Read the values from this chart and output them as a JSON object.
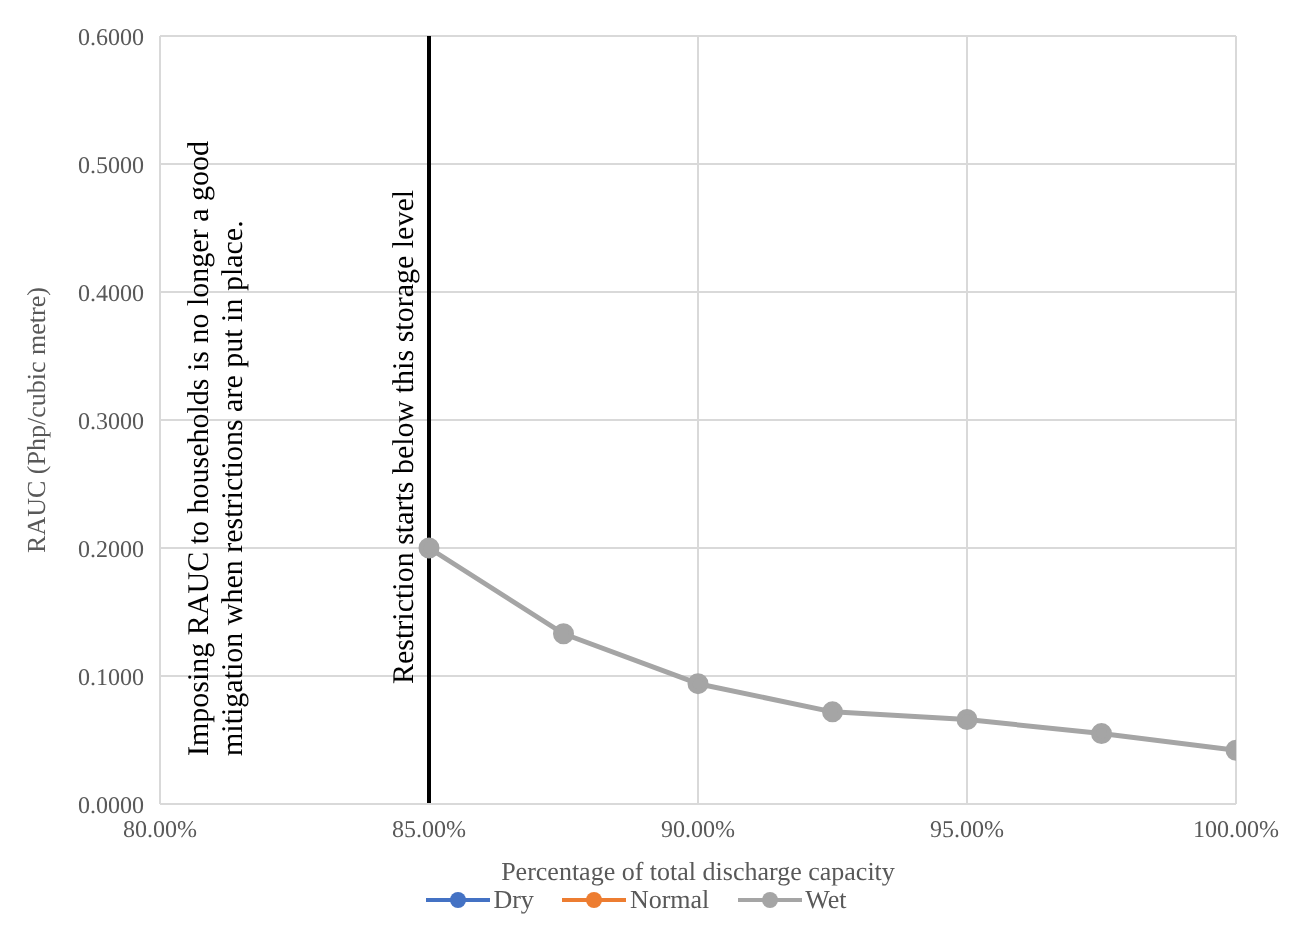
{
  "chart_data": {
    "type": "line",
    "xlabel": "Percentage of total discharge capacity",
    "ylabel": "RAUC (Php/cubic metre)",
    "x": [
      85,
      87.5,
      90,
      92.5,
      95,
      97.5,
      100
    ],
    "series": [
      {
        "name": "Dry",
        "color": "#4472c4",
        "values": [
          null,
          null,
          null,
          null,
          null,
          null,
          null
        ]
      },
      {
        "name": "Normal",
        "color": "#ed7d31",
        "values": [
          null,
          null,
          null,
          null,
          null,
          null,
          null
        ]
      },
      {
        "name": "Wet",
        "color": "#a5a5a5",
        "values": [
          0.2,
          0.133,
          0.094,
          0.072,
          0.066,
          0.055,
          0.042
        ]
      }
    ],
    "xlim": [
      80,
      100
    ],
    "xticks": [
      {
        "value": 80,
        "label": "80.00%"
      },
      {
        "value": 85,
        "label": "85.00%"
      },
      {
        "value": 90,
        "label": "90.00%"
      },
      {
        "value": 95,
        "label": "95.00%"
      },
      {
        "value": 100,
        "label": "100.00%"
      }
    ],
    "ylim": [
      0,
      0.6
    ],
    "yticks": [
      {
        "value": 0,
        "label": "0.0000"
      },
      {
        "value": 0.1,
        "label": "0.1000"
      },
      {
        "value": 0.2,
        "label": "0.2000"
      },
      {
        "value": 0.3,
        "label": "0.3000"
      },
      {
        "value": 0.4,
        "label": "0.4000"
      },
      {
        "value": 0.5,
        "label": "0.5000"
      },
      {
        "value": 0.6,
        "label": "0.6000"
      }
    ],
    "ref_lines": [
      {
        "axis": "x",
        "value": 85,
        "label": "Restriction starts below this storage level",
        "color": "#000000"
      }
    ],
    "annotations": [
      "Imposing RAUC to households is no longer a good mitigation when restrictions are put in place."
    ],
    "grid": true,
    "legend": "bottom",
    "marker": "circle",
    "line_style": "solid"
  }
}
